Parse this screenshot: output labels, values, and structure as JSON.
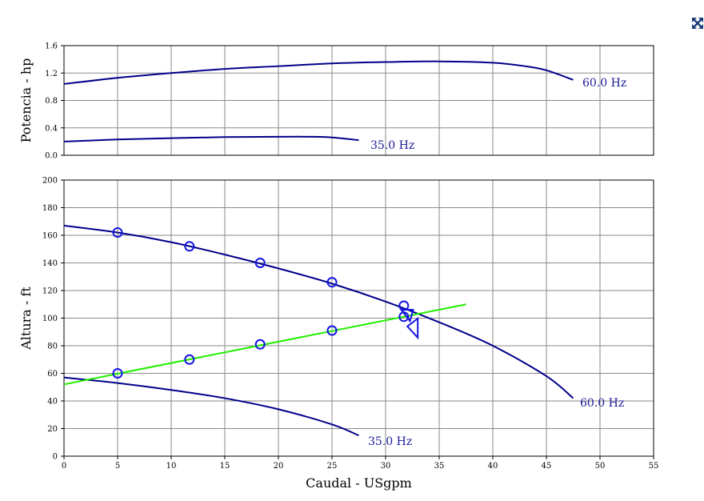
{
  "controls": {
    "expand_icon": "expand-arrows-icon"
  },
  "chart_data": [
    {
      "type": "line",
      "ylabel": "Potencia - hp",
      "xlim": [
        0,
        55
      ],
      "ylim": [
        0,
        1.6
      ],
      "x_ticks": [
        0,
        5,
        10,
        15,
        20,
        25,
        30,
        35,
        40,
        45,
        50,
        55
      ],
      "y_ticks": [
        0.0,
        0.4,
        0.8,
        1.2,
        1.6
      ],
      "y_tick_labels": [
        "0.0",
        "0.4",
        "0.8",
        "1.2",
        "1.6"
      ],
      "grid": true,
      "series": [
        {
          "name": "60.0 Hz",
          "color": "#00008b",
          "points": [
            [
              0,
              1.04
            ],
            [
              5,
              1.13
            ],
            [
              10,
              1.2
            ],
            [
              15,
              1.26
            ],
            [
              20,
              1.3
            ],
            [
              25,
              1.34
            ],
            [
              30,
              1.36
            ],
            [
              35,
              1.37
            ],
            [
              40,
              1.35
            ],
            [
              43,
              1.3
            ],
            [
              45,
              1.24
            ],
            [
              47.5,
              1.1
            ]
          ]
        },
        {
          "name": "35.0 Hz",
          "color": "#00008b",
          "points": [
            [
              0,
              0.2
            ],
            [
              5,
              0.23
            ],
            [
              10,
              0.25
            ],
            [
              15,
              0.265
            ],
            [
              20,
              0.27
            ],
            [
              23,
              0.27
            ],
            [
              25,
              0.26
            ],
            [
              27.5,
              0.22
            ]
          ]
        }
      ]
    },
    {
      "type": "line",
      "xlabel": "Caudal - USgpm",
      "ylabel": "Altura - ft",
      "xlim": [
        0,
        55
      ],
      "ylim": [
        0,
        200
      ],
      "x_ticks": [
        0,
        5,
        10,
        15,
        20,
        25,
        30,
        35,
        40,
        45,
        50,
        55
      ],
      "y_ticks": [
        0,
        20,
        40,
        60,
        80,
        100,
        120,
        140,
        160,
        180,
        200
      ],
      "grid": true,
      "series": [
        {
          "name": "60.0 Hz",
          "color": "#00008b",
          "points": [
            [
              0,
              167
            ],
            [
              5,
              162
            ],
            [
              10,
              155
            ],
            [
              15,
              146
            ],
            [
              20,
              136
            ],
            [
              25,
              125
            ],
            [
              30,
              112
            ],
            [
              35,
              97
            ],
            [
              40,
              80
            ],
            [
              45,
              58
            ],
            [
              47.5,
              42
            ]
          ]
        },
        {
          "name": "35.0 Hz",
          "color": "#00008b",
          "points": [
            [
              0,
              57
            ],
            [
              5,
              53
            ],
            [
              10,
              48
            ],
            [
              15,
              42
            ],
            [
              20,
              34
            ],
            [
              25,
              23
            ],
            [
              27.5,
              15
            ]
          ]
        },
        {
          "name": "",
          "color": "#22ee00",
          "points": [
            [
              0,
              52
            ],
            [
              37.5,
              110
            ]
          ]
        }
      ],
      "markers": {
        "color": "#1414e0",
        "circles": [
          [
            5,
            162
          ],
          [
            11.7,
            152
          ],
          [
            18.3,
            140
          ],
          [
            25,
            126
          ],
          [
            31.7,
            109
          ],
          [
            5,
            60
          ],
          [
            11.7,
            70
          ],
          [
            18.3,
            81
          ],
          [
            25,
            91
          ],
          [
            31.7,
            101
          ]
        ],
        "triangle_left": [
          32.2,
          102
        ],
        "triangle_right": [
          33,
          94
        ]
      }
    }
  ]
}
